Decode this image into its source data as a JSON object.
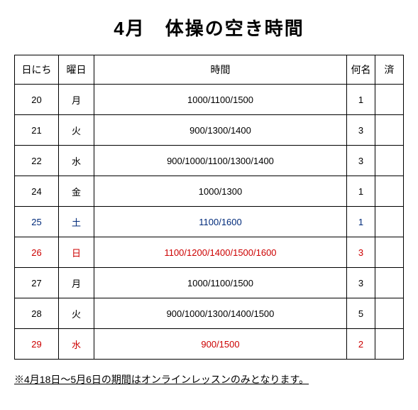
{
  "title": "4月　体操の空き時間",
  "colors": {
    "weekday": "#000000",
    "saturday": "#002a7a",
    "holiday": "#cc0000",
    "noteText": "#000000",
    "border": "#000000",
    "background": "#ffffff"
  },
  "headers": {
    "date": "日にち",
    "day": "曜日",
    "time": "時間",
    "capacity": "何名",
    "done": "済"
  },
  "rows": [
    {
      "date": "20",
      "day": "月",
      "time": "1000/1100/1500",
      "capacity": "1",
      "done": "",
      "colorKey": "weekday"
    },
    {
      "date": "21",
      "day": "火",
      "time": "900/1300/1400",
      "capacity": "3",
      "done": "",
      "colorKey": "weekday"
    },
    {
      "date": "22",
      "day": "水",
      "time": "900/1000/1100/1300/1400",
      "capacity": "3",
      "done": "",
      "colorKey": "weekday"
    },
    {
      "date": "24",
      "day": "金",
      "time": "1000/1300",
      "capacity": "1",
      "done": "",
      "colorKey": "weekday"
    },
    {
      "date": "25",
      "day": "土",
      "time": "1100/1600",
      "capacity": "1",
      "done": "",
      "colorKey": "saturday"
    },
    {
      "date": "26",
      "day": "日",
      "time": "1100/1200/1400/1500/1600",
      "capacity": "3",
      "done": "",
      "colorKey": "holiday"
    },
    {
      "date": "27",
      "day": "月",
      "time": "1000/1100/1500",
      "capacity": "3",
      "done": "",
      "colorKey": "weekday"
    },
    {
      "date": "28",
      "day": "火",
      "time": "900/1000/1300/1400/1500",
      "capacity": "5",
      "done": "",
      "colorKey": "weekday"
    },
    {
      "date": "29",
      "day": "水",
      "time": "900/1500",
      "capacity": "2",
      "done": "",
      "colorKey": "holiday"
    }
  ],
  "note": "※4月18日～5月6日の期間はオンラインレッスンのみとなります。"
}
